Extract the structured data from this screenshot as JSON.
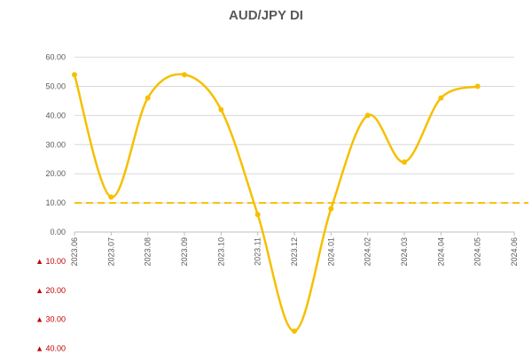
{
  "chart_data": {
    "type": "line",
    "title": "AUD/JPY  DI",
    "xlabel": "",
    "ylabel": "",
    "categories": [
      "2023.06",
      "2023.07",
      "2023.08",
      "2023.09",
      "2023.10",
      "2023.11",
      "2023.12",
      "2024.01",
      "2024.02",
      "2024.03",
      "2024.04",
      "2024.05",
      "2024.06"
    ],
    "series": [
      {
        "values": [
          54,
          12,
          46,
          54,
          42,
          6,
          -34,
          8,
          40,
          24,
          46,
          50,
          null
        ]
      }
    ],
    "ylim": [
      -40,
      60
    ],
    "yticks": [
      {
        "value": 60,
        "label": "60.00"
      },
      {
        "value": 50,
        "label": "50.00"
      },
      {
        "value": 40,
        "label": "40.00"
      },
      {
        "value": 30,
        "label": "30.00"
      },
      {
        "value": 20,
        "label": "20.00"
      },
      {
        "value": 10,
        "label": "10.00"
      },
      {
        "value": 0,
        "label": "0.00"
      },
      {
        "value": -10,
        "label": "▲ 10.00"
      },
      {
        "value": -20,
        "label": "▲ 20.00"
      },
      {
        "value": -30,
        "label": "▲ 30.00"
      },
      {
        "value": -40,
        "label": "▲ 40.00"
      }
    ],
    "reference_line": {
      "value": 10,
      "style": "dashed"
    },
    "grid": true,
    "legend": "none",
    "colors": {
      "line": "#f5c000",
      "grid": "#d9d9d9",
      "negative_tick": "#c00000",
      "text": "#595959"
    }
  }
}
